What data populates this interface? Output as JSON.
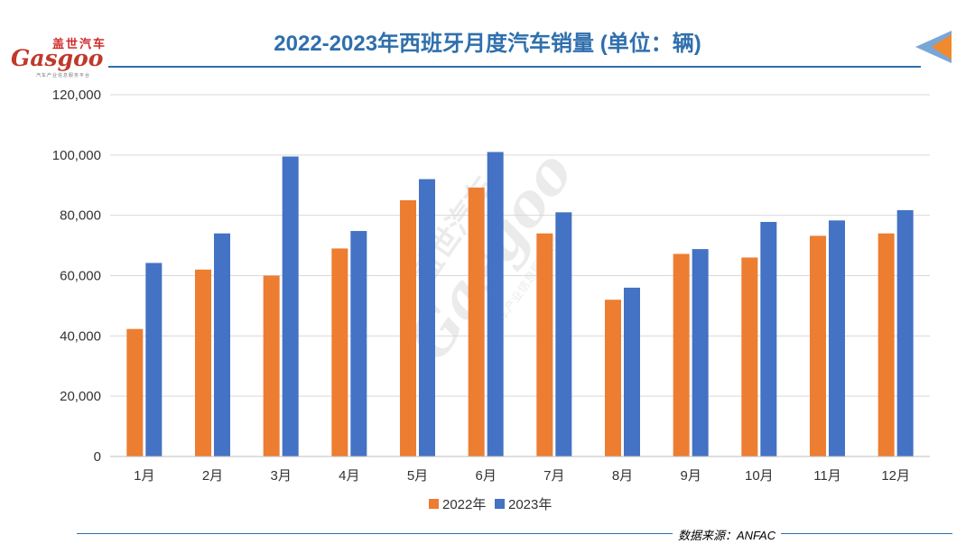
{
  "logo": {
    "cn": "盖世汽车",
    "en": "Gasgoo",
    "sub": "汽车产业信息服务平台"
  },
  "watermark": {
    "cn": "盖世汽车",
    "en": "Gasgoo",
    "sub": "汽车产业信息服务平台"
  },
  "source": "数据来源：ANFAC",
  "colors": {
    "y2022": "#ed7d31",
    "y2023": "#4472c4",
    "title": "#2f6fad",
    "grid": "#d9d9d9"
  },
  "chart_data": {
    "type": "bar",
    "title": "2022-2023年西班牙月度汽车销量 (单位：辆)",
    "categories": [
      "1月",
      "2月",
      "3月",
      "4月",
      "5月",
      "6月",
      "7月",
      "8月",
      "9月",
      "10月",
      "11月",
      "12月"
    ],
    "series": [
      {
        "name": "2022年",
        "values": [
          42300,
          62000,
          60000,
          69000,
          85000,
          89200,
          74000,
          52000,
          67200,
          66000,
          73200,
          74000
        ]
      },
      {
        "name": "2023年",
        "values": [
          64200,
          74000,
          99500,
          74800,
          92000,
          101000,
          81000,
          56000,
          68800,
          77800,
          78300,
          81700
        ]
      }
    ],
    "ylim": [
      0,
      120000
    ],
    "yticks": [
      "0",
      "20,000",
      "40,000",
      "60,000",
      "80,000",
      "100,000",
      "120,000"
    ],
    "grid": true,
    "legend": "bottom-center"
  }
}
